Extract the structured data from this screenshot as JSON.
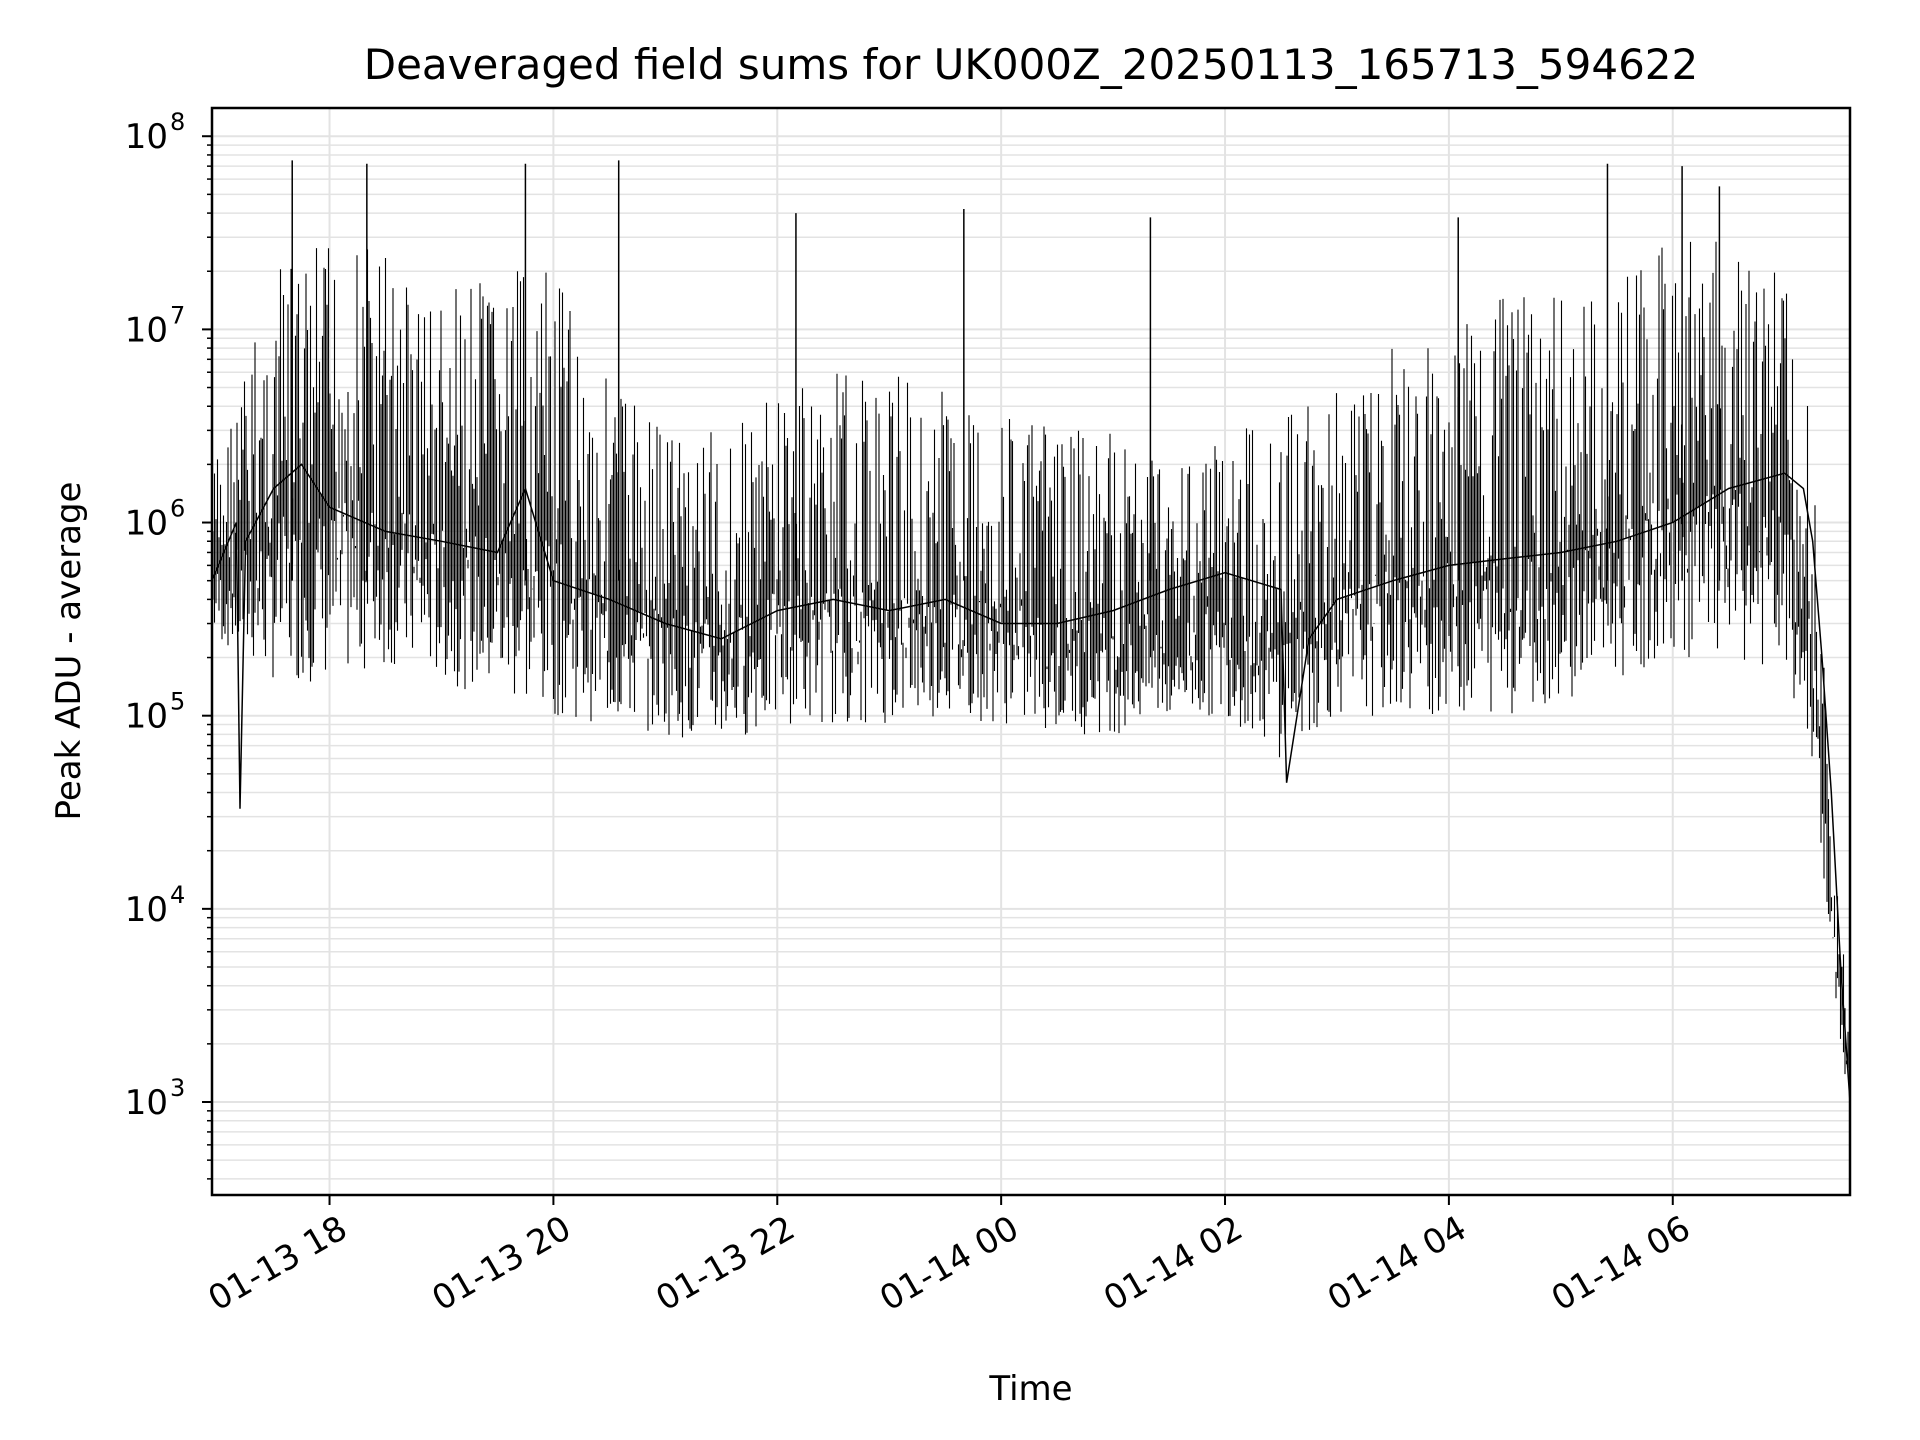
{
  "chart_data": {
    "type": "line",
    "title": "Deaveraged field sums for UK000Z_20250113_165713_594622",
    "xlabel": "Time",
    "ylabel": "Peak ADU - average",
    "yscale": "log",
    "ylim": [
      330,
      140000000
    ],
    "xlim": [
      "2025-01-13 16:57",
      "2025-01-14 07:35"
    ],
    "grid": true,
    "line_color": "#000000",
    "grid_color": "#e3e3e3",
    "x_ticks": [
      {
        "value": "2025-01-13 18:00",
        "label": "01-13 18"
      },
      {
        "value": "2025-01-13 20:00",
        "label": "01-13 20"
      },
      {
        "value": "2025-01-13 22:00",
        "label": "01-13 22"
      },
      {
        "value": "2025-01-14 00:00",
        "label": "01-14 00"
      },
      {
        "value": "2025-01-14 02:00",
        "label": "01-14 02"
      },
      {
        "value": "2025-01-14 04:00",
        "label": "01-14 04"
      },
      {
        "value": "2025-01-14 06:00",
        "label": "01-14 06"
      }
    ],
    "y_ticks": [
      {
        "value": 1000,
        "base": "10",
        "exp": "3"
      },
      {
        "value": 10000,
        "base": "10",
        "exp": "4"
      },
      {
        "value": 100000,
        "base": "10",
        "exp": "5"
      },
      {
        "value": 1000000,
        "base": "10",
        "exp": "6"
      },
      {
        "value": 10000000,
        "base": "10",
        "exp": "7"
      },
      {
        "value": 100000000,
        "base": "10",
        "exp": "8"
      }
    ],
    "series": [
      {
        "x": [
          "2025-01-13 16:57",
          "2025-01-13 17:10",
          "2025-01-13 17:12",
          "2025-01-13 17:15",
          "2025-01-13 17:30",
          "2025-01-13 17:45",
          "2025-01-13 18:00",
          "2025-01-13 18:30",
          "2025-01-13 19:00",
          "2025-01-13 19:30",
          "2025-01-13 19:45",
          "2025-01-13 20:00",
          "2025-01-13 20:30",
          "2025-01-13 21:00",
          "2025-01-13 21:30",
          "2025-01-13 22:00",
          "2025-01-13 22:30",
          "2025-01-13 23:00",
          "2025-01-13 23:30",
          "2025-01-14 00:00",
          "2025-01-14 00:30",
          "2025-01-14 01:00",
          "2025-01-14 01:30",
          "2025-01-14 02:00",
          "2025-01-14 02:30",
          "2025-01-14 02:33",
          "2025-01-14 02:45",
          "2025-01-14 03:00",
          "2025-01-14 03:30",
          "2025-01-14 04:00",
          "2025-01-14 04:30",
          "2025-01-14 05:00",
          "2025-01-14 05:30",
          "2025-01-14 06:00",
          "2025-01-14 06:30",
          "2025-01-14 07:00",
          "2025-01-14 07:10",
          "2025-01-14 07:15",
          "2025-01-14 07:20",
          "2025-01-14 07:25",
          "2025-01-14 07:30",
          "2025-01-14 07:35"
        ],
        "y": [
          500000,
          1000000,
          33000,
          800000,
          1500000,
          2000000,
          1200000,
          900000,
          800000,
          700000,
          1500000,
          500000,
          400000,
          300000,
          250000,
          350000,
          400000,
          350000,
          400000,
          300000,
          300000,
          350000,
          450000,
          550000,
          450000,
          45000,
          250000,
          400000,
          500000,
          600000,
          650000,
          700000,
          800000,
          1000000,
          1500000,
          1800000,
          1500000,
          800000,
          200000,
          40000,
          5000,
          1000
        ]
      }
    ],
    "envelope": {
      "x": [
        "2025-01-13 16:57",
        "2025-01-13 17:30",
        "2025-01-13 18:00",
        "2025-01-13 18:30",
        "2025-01-13 19:00",
        "2025-01-13 19:30",
        "2025-01-13 20:00",
        "2025-01-13 20:30",
        "2025-01-13 21:00",
        "2025-01-13 21:30",
        "2025-01-13 22:00",
        "2025-01-13 22:30",
        "2025-01-13 23:00",
        "2025-01-13 23:30",
        "2025-01-14 00:00",
        "2025-01-14 00:30",
        "2025-01-14 01:00",
        "2025-01-14 01:30",
        "2025-01-14 02:00",
        "2025-01-14 02:30",
        "2025-01-14 03:00",
        "2025-01-14 03:30",
        "2025-01-14 04:00",
        "2025-01-14 04:30",
        "2025-01-14 05:00",
        "2025-01-14 05:30",
        "2025-01-14 06:00",
        "2025-01-14 06:30",
        "2025-01-14 07:00",
        "2025-01-14 07:15",
        "2025-01-14 07:25",
        "2025-01-14 07:35"
      ],
      "low": [
        250000,
        150000,
        150000,
        180000,
        150000,
        120000,
        100000,
        90000,
        80000,
        70000,
        90000,
        90000,
        90000,
        100000,
        90000,
        80000,
        80000,
        90000,
        100000,
        60000,
        100000,
        100000,
        100000,
        100000,
        120000,
        150000,
        200000,
        200000,
        150000,
        60000,
        5000,
        800
      ],
      "high": [
        2000000,
        20000000,
        30000000,
        30000000,
        15000000,
        20000000,
        20000000,
        6000000,
        4000000,
        3000000,
        5000000,
        6000000,
        6000000,
        5000000,
        4000000,
        3000000,
        3000000,
        2500000,
        3000000,
        4000000,
        5000000,
        8000000,
        10000000,
        15000000,
        15000000,
        20000000,
        30000000,
        30000000,
        25000000,
        3000000,
        30000,
        3000
      ]
    },
    "spikes": [
      {
        "x": "2025-01-13 17:40",
        "y": 75000000
      },
      {
        "x": "2025-01-13 18:20",
        "y": 72000000
      },
      {
        "x": "2025-01-13 19:45",
        "y": 72000000
      },
      {
        "x": "2025-01-13 20:35",
        "y": 75000000
      },
      {
        "x": "2025-01-13 22:10",
        "y": 40000000
      },
      {
        "x": "2025-01-13 23:40",
        "y": 42000000
      },
      {
        "x": "2025-01-14 01:20",
        "y": 38000000
      },
      {
        "x": "2025-01-14 04:05",
        "y": 38000000
      },
      {
        "x": "2025-01-14 05:25",
        "y": 72000000
      },
      {
        "x": "2025-01-14 06:05",
        "y": 70000000
      },
      {
        "x": "2025-01-14 06:25",
        "y": 55000000
      }
    ]
  }
}
